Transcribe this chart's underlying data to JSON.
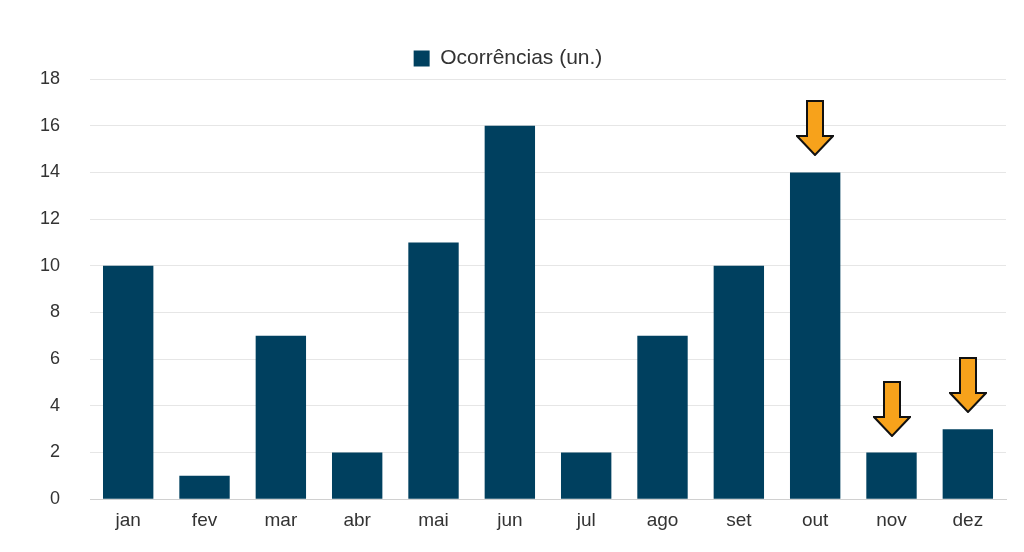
{
  "chart_data": {
    "type": "bar",
    "categories": [
      "jan",
      "fev",
      "mar",
      "abr",
      "mai",
      "jun",
      "jul",
      "ago",
      "set",
      "out",
      "nov",
      "dez"
    ],
    "series": [
      {
        "name": "Ocorrências (un.)",
        "color": "#00405f",
        "values": [
          10,
          1,
          7,
          2,
          11,
          16,
          2,
          7,
          10,
          14,
          2,
          3
        ]
      }
    ],
    "ylim": [
      0,
      18
    ],
    "yticks": [
      0,
      2,
      4,
      6,
      8,
      10,
      12,
      14,
      16,
      18
    ],
    "grid": "y",
    "legend": "top"
  }
}
